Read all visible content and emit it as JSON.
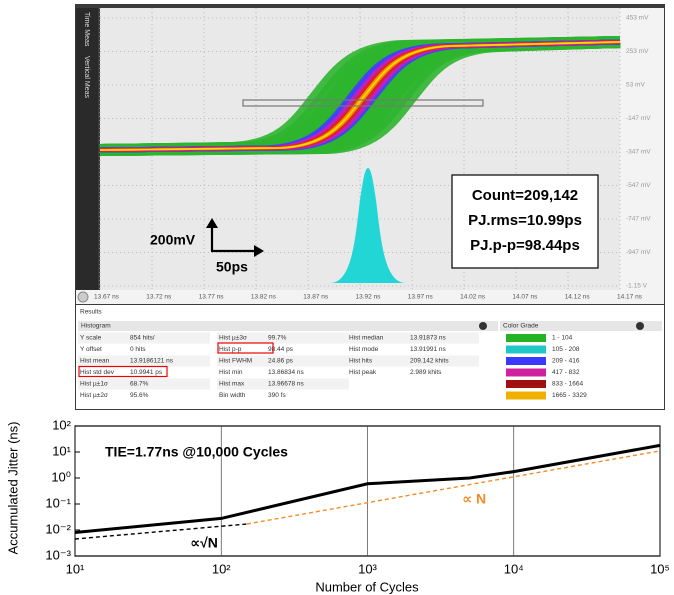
{
  "screenshot": {
    "tabs": [
      "Time Meas",
      "Vertical Meas"
    ],
    "y_labels": [
      "453 mV",
      "253 mV",
      "53 mV",
      "-147 mV",
      "-347 mV",
      "-547 mV",
      "-747 mV",
      "-947 mV",
      "-1.15 V"
    ],
    "x_labels": [
      "13.67 ns",
      "13.72 ns",
      "13.77 ns",
      "13.82 ns",
      "13.87 ns",
      "13.92 ns",
      "13.97 ns",
      "14.02 ns",
      "14.07 ns",
      "14.12 ns",
      "14.17 ns"
    ],
    "annotation": [
      "Count=209,142",
      "PJ.rms=10.99ps",
      "PJ.p-p=98.44ps"
    ],
    "scale": {
      "vertical": "200mV",
      "horizontal": "50ps"
    },
    "results": {
      "title": "Results",
      "histogram_title": "Histogram",
      "color_grade_title": "Color Grade",
      "table": [
        [
          [
            "Y scale",
            "854 hits/"
          ],
          [
            "Y offset",
            "0 hits"
          ],
          [
            "Hist mean",
            "13.9186121 ns"
          ],
          [
            "Hist std dev",
            "10.9941 ps"
          ],
          [
            "Hist µ±1σ",
            "68.7%"
          ],
          [
            "Hist µ±2σ",
            "95.6%"
          ]
        ],
        [
          [
            "Hist µ±3σ",
            "99.7%"
          ],
          [
            "Hist p-p",
            "98.44 ps"
          ],
          [
            "Hist FWHM",
            "24.86 ps"
          ],
          [
            "Hist min",
            "13.86834 ns"
          ],
          [
            "Hist max",
            "13.96678 ns"
          ],
          [
            "Bin width",
            "390 fs"
          ]
        ],
        [
          [
            "Hist median",
            "13.91873 ns"
          ],
          [
            "Hist mode",
            "13.91991 ns"
          ],
          [
            "Hist hits",
            "209.142 khits"
          ],
          [
            "Hist peak",
            "2.989 khits"
          ]
        ]
      ],
      "color_grade": [
        "1 - 104",
        "105 - 208",
        "209 - 416",
        "417 - 832",
        "833 - 1664",
        "1665 - 3329"
      ]
    }
  },
  "chart_data": {
    "type": "line",
    "x_label": "Number of Cycles",
    "y_label": "Accumulated Jitter (ns)",
    "annotation": "TIE=1.77ns @10,000 Cycles",
    "xscale": "log",
    "yscale": "log",
    "xlim": [
      10,
      100000
    ],
    "ylim": [
      0.001,
      100
    ],
    "xticks": [
      {
        "value": 10,
        "label": "10¹"
      },
      {
        "value": 100,
        "label": "10²"
      },
      {
        "value": 1000,
        "label": "10³"
      },
      {
        "value": 10000,
        "label": "10⁴"
      },
      {
        "value": 100000,
        "label": "10⁵"
      }
    ],
    "yticks": [
      {
        "value": 0.001,
        "label": "10⁻³"
      },
      {
        "value": 0.01,
        "label": "10⁻²"
      },
      {
        "value": 0.1,
        "label": "10⁻¹"
      },
      {
        "value": 1,
        "label": "10⁰"
      },
      {
        "value": 10,
        "label": "10¹"
      },
      {
        "value": 100,
        "label": "10²"
      }
    ],
    "grid": "x",
    "series": [
      {
        "color": "#000000",
        "style": "solid",
        "x": [
          10,
          100,
          200,
          1000,
          5000,
          10000,
          100000
        ],
        "values": [
          0.008,
          0.028,
          0.07,
          0.6,
          1.0,
          1.77,
          18
        ]
      },
      {
        "name": "∝√N",
        "color": "#000000",
        "style": "dashed",
        "x": [
          10,
          150
        ],
        "values": [
          0.0045,
          0.017
        ]
      },
      {
        "name": "∝ N",
        "color": "#f28c28",
        "style": "dashed",
        "x": [
          150,
          100000
        ],
        "values": [
          0.017,
          11
        ]
      }
    ]
  }
}
